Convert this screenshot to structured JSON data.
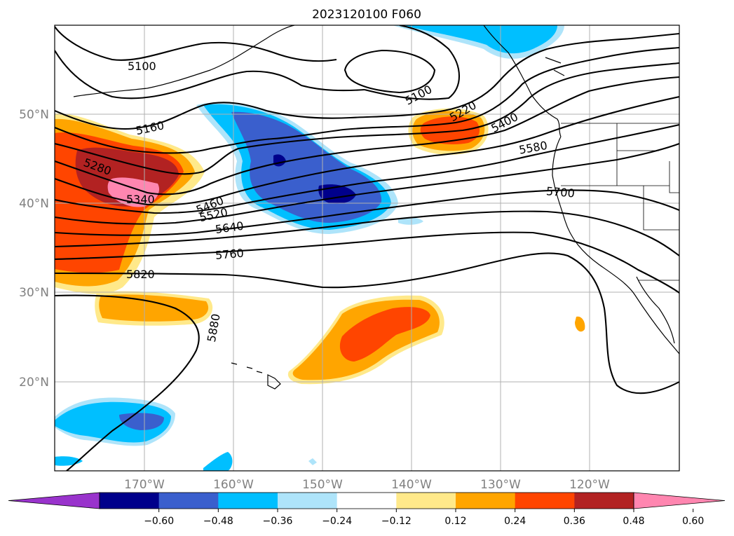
{
  "title": "2023120100 F060",
  "map": {
    "lon_labels": [
      "170°W",
      "160°W",
      "150°W",
      "140°W",
      "130°W",
      "120°W"
    ],
    "lat_labels": [
      "50°N",
      "40°N",
      "30°N",
      "20°N"
    ],
    "gridlines": true,
    "contour_labels": [
      "5100",
      "5100",
      "5160",
      "5220",
      "5280",
      "5340",
      "5400",
      "5460",
      "5520",
      "5580",
      "5640",
      "5700",
      "5760",
      "5820",
      "5880"
    ]
  },
  "colorbar": {
    "tick_labels": [
      "−0.60",
      "−0.48",
      "−0.36",
      "−0.24",
      "−0.12",
      "0.12",
      "0.24",
      "0.36",
      "0.48",
      "0.60"
    ],
    "colors": [
      "#9933cc",
      "#00008b",
      "#3a5fcd",
      "#00bfff",
      "#aee4fa",
      "#ffffff",
      "#ffe98a",
      "#ffa500",
      "#ff4500",
      "#b22222",
      "#ff86b0"
    ]
  }
}
